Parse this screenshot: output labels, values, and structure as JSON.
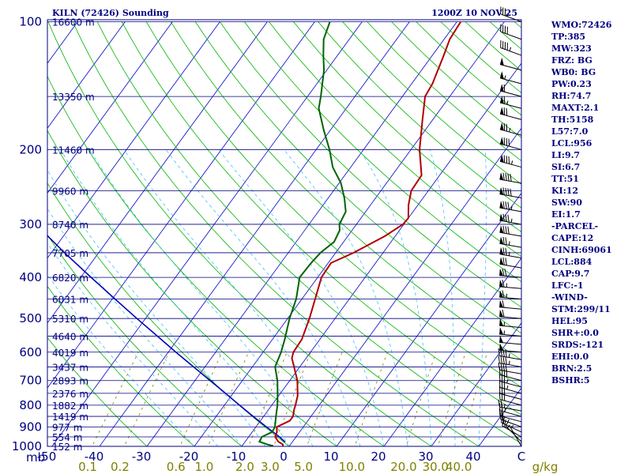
{
  "chart_data": {
    "type": "skew-t",
    "title_left": "KILN (72426) Sounding",
    "title_right": "1200Z 10 NOV 25",
    "pressure_unit_label": "mb",
    "mixing_unit_label": "g/kg",
    "pressure_ticks": [
      "100",
      "200",
      "300",
      "400",
      "500",
      "600",
      "700",
      "800",
      "900",
      "1000"
    ],
    "temperature_ticks": [
      "-50",
      "-40",
      "-30",
      "-20",
      "-10",
      "0",
      "10",
      "20",
      "30",
      "40",
      "C"
    ],
    "mixing_ratio_ticks": [
      "0.1",
      "0.2",
      "0.6",
      "1.0",
      "2.0",
      "3.0",
      "5.0",
      "10.0",
      "20.0",
      "30.0",
      "40.0"
    ],
    "heights": [
      {
        "label": "16600 m",
        "p": 100
      },
      {
        "label": "13350 m",
        "p": 150
      },
      {
        "label": "11460 m",
        "p": 200
      },
      {
        "label": "9960 m",
        "p": 250
      },
      {
        "label": "8740 m",
        "p": 300
      },
      {
        "label": "7705 m",
        "p": 350
      },
      {
        "label": "6820 m",
        "p": 400
      },
      {
        "label": "6031 m",
        "p": 450
      },
      {
        "label": "5310 m",
        "p": 500
      },
      {
        "label": "4640 m",
        "p": 550
      },
      {
        "label": "4019 m",
        "p": 600
      },
      {
        "label": "3437 m",
        "p": 650
      },
      {
        "label": "2893 m",
        "p": 700
      },
      {
        "label": "2376 m",
        "p": 750
      },
      {
        "label": "1882 m",
        "p": 800
      },
      {
        "label": "1419 m",
        "p": 850
      },
      {
        "label": "977 m",
        "p": 900
      },
      {
        "label": "554 m",
        "p": 950
      },
      {
        "label": "152 m",
        "p": 1000
      }
    ],
    "temperature_profile": [
      [
        998,
        -1.4
      ],
      [
        990,
        -1.6
      ],
      [
        975,
        -3.0
      ],
      [
        950,
        -4.4
      ],
      [
        925,
        -4.8
      ],
      [
        900,
        -5.6
      ],
      [
        880,
        -4.4
      ],
      [
        870,
        -3.8
      ],
      [
        850,
        -3.8
      ],
      [
        820,
        -4.6
      ],
      [
        800,
        -5.0
      ],
      [
        760,
        -6.0
      ],
      [
        700,
        -8.4
      ],
      [
        650,
        -11.2
      ],
      [
        620,
        -13.0
      ],
      [
        600,
        -13.6
      ],
      [
        560,
        -13.8
      ],
      [
        500,
        -15.4
      ],
      [
        450,
        -17.2
      ],
      [
        400,
        -19.2
      ],
      [
        370,
        -19.4
      ],
      [
        350,
        -16.2
      ],
      [
        320,
        -12.2
      ],
      [
        300,
        -10.2
      ],
      [
        290,
        -10.0
      ],
      [
        270,
        -12.0
      ],
      [
        250,
        -13.6
      ],
      [
        230,
        -13.8
      ],
      [
        200,
        -18.2
      ],
      [
        170,
        -22.2
      ],
      [
        150,
        -25.2
      ],
      [
        140,
        -25.6
      ],
      [
        120,
        -27.6
      ],
      [
        110,
        -28.8
      ],
      [
        100,
        -29.2
      ]
    ],
    "dewpoint_profile": [
      [
        998,
        -3.4
      ],
      [
        990,
        -4.8
      ],
      [
        975,
        -7.0
      ],
      [
        950,
        -7.2
      ],
      [
        925,
        -5.8
      ],
      [
        900,
        -6.0
      ],
      [
        850,
        -7.4
      ],
      [
        800,
        -8.8
      ],
      [
        750,
        -10.6
      ],
      [
        700,
        -12.6
      ],
      [
        650,
        -15.2
      ],
      [
        600,
        -16.2
      ],
      [
        560,
        -17.4
      ],
      [
        500,
        -19.6
      ],
      [
        450,
        -21.2
      ],
      [
        400,
        -23.8
      ],
      [
        370,
        -23.6
      ],
      [
        350,
        -23.2
      ],
      [
        330,
        -22.0
      ],
      [
        310,
        -22.6
      ],
      [
        300,
        -23.6
      ],
      [
        280,
        -24.2
      ],
      [
        260,
        -26.6
      ],
      [
        240,
        -29.6
      ],
      [
        220,
        -33.8
      ],
      [
        200,
        -37.2
      ],
      [
        180,
        -41.4
      ],
      [
        160,
        -45.8
      ],
      [
        150,
        -47.2
      ],
      [
        130,
        -50.6
      ],
      [
        120,
        -53.0
      ],
      [
        110,
        -55.4
      ],
      [
        100,
        -56.8
      ]
    ],
    "parcel_profile": [
      [
        977,
        -1.5
      ],
      [
        950,
        -3.5
      ],
      [
        900,
        -7.8
      ],
      [
        850,
        -12.2
      ],
      [
        800,
        -16.8
      ],
      [
        750,
        -21.6
      ],
      [
        700,
        -26.8
      ],
      [
        650,
        -32.4
      ],
      [
        600,
        -38.4
      ],
      [
        550,
        -44.8
      ],
      [
        500,
        -51.8
      ],
      [
        450,
        -59.4
      ],
      [
        400,
        -67.8
      ],
      [
        350,
        -77.2
      ],
      [
        300,
        -87.6
      ],
      [
        250,
        -99.4
      ],
      [
        200,
        -112.8
      ],
      [
        150,
        -128.6
      ],
      [
        100,
        -148.2
      ]
    ],
    "parameters": [
      "WMO:72426",
      "TP:385",
      "MW:323",
      "FRZ: BG",
      "WB0: BG",
      "PW:0.23",
      "RH:74.7",
      "MAXT:2.1",
      "TH:5158",
      "L57:7.0",
      "LCL:956",
      "LI:9.7",
      "SI:6.7",
      "TT:51",
      "KI:12",
      "SW:90",
      "EI:1.7",
      "-PARCEL-",
      "CAPE:12",
      "CINH:69061",
      "LCL:884",
      "CAP:9.7",
      "LFC:-1",
      "-WIND-",
      "STM:299/11",
      "HEL:95",
      "SHR+:0.0",
      "SRDS:-121",
      "EHI:0.0",
      "BRN:2.5",
      "BSHR:5"
    ],
    "winds": [
      {
        "p": 1000,
        "dir": 330,
        "spd": 5
      },
      {
        "p": 975,
        "dir": 315,
        "spd": 15
      },
      {
        "p": 950,
        "dir": 300,
        "spd": 20
      },
      {
        "p": 925,
        "dir": 295,
        "spd": 20
      },
      {
        "p": 900,
        "dir": 290,
        "spd": 20
      },
      {
        "p": 875,
        "dir": 285,
        "spd": 20
      },
      {
        "p": 850,
        "dir": 285,
        "spd": 25
      },
      {
        "p": 825,
        "dir": 280,
        "spd": 25
      },
      {
        "p": 800,
        "dir": 285,
        "spd": 30
      },
      {
        "p": 775,
        "dir": 285,
        "spd": 30
      },
      {
        "p": 750,
        "dir": 285,
        "spd": 35
      },
      {
        "p": 725,
        "dir": 285,
        "spd": 35
      },
      {
        "p": 700,
        "dir": 285,
        "spd": 40
      },
      {
        "p": 675,
        "dir": 280,
        "spd": 40
      },
      {
        "p": 650,
        "dir": 280,
        "spd": 45
      },
      {
        "p": 625,
        "dir": 280,
        "spd": 45
      },
      {
        "p": 600,
        "dir": 275,
        "spd": 50
      },
      {
        "p": 575,
        "dir": 275,
        "spd": 50
      },
      {
        "p": 550,
        "dir": 275,
        "spd": 55
      },
      {
        "p": 525,
        "dir": 275,
        "spd": 55
      },
      {
        "p": 500,
        "dir": 275,
        "spd": 60
      },
      {
        "p": 475,
        "dir": 275,
        "spd": 60
      },
      {
        "p": 450,
        "dir": 275,
        "spd": 65
      },
      {
        "p": 425,
        "dir": 275,
        "spd": 65
      },
      {
        "p": 400,
        "dir": 275,
        "spd": 70
      },
      {
        "p": 380,
        "dir": 280,
        "spd": 70
      },
      {
        "p": 360,
        "dir": 280,
        "spd": 75
      },
      {
        "p": 340,
        "dir": 280,
        "spd": 75
      },
      {
        "p": 320,
        "dir": 280,
        "spd": 80
      },
      {
        "p": 300,
        "dir": 280,
        "spd": 85
      },
      {
        "p": 280,
        "dir": 280,
        "spd": 85
      },
      {
        "p": 260,
        "dir": 280,
        "spd": 90
      },
      {
        "p": 240,
        "dir": 280,
        "spd": 90
      },
      {
        "p": 220,
        "dir": 285,
        "spd": 85
      },
      {
        "p": 200,
        "dir": 285,
        "spd": 80
      },
      {
        "p": 185,
        "dir": 285,
        "spd": 75
      },
      {
        "p": 170,
        "dir": 285,
        "spd": 70
      },
      {
        "p": 160,
        "dir": 285,
        "spd": 65
      },
      {
        "p": 150,
        "dir": 285,
        "spd": 60
      },
      {
        "p": 140,
        "dir": 285,
        "spd": 55
      },
      {
        "p": 130,
        "dir": 285,
        "spd": 50
      },
      {
        "p": 120,
        "dir": 290,
        "spd": 45
      },
      {
        "p": 110,
        "dir": 290,
        "spd": 40
      },
      {
        "p": 100,
        "dir": 290,
        "spd": 35
      }
    ],
    "colors": {
      "axis": "#000080",
      "temperature": "#b00000",
      "dewpoint": "#006400",
      "parcel": "#0000b4",
      "isotherm": "#0000c8",
      "dry_adiabat": "#00b400",
      "moist_adiabat": "#40c0ff",
      "mixing_ratio": "#808000",
      "mixing_label": "#808000"
    }
  }
}
